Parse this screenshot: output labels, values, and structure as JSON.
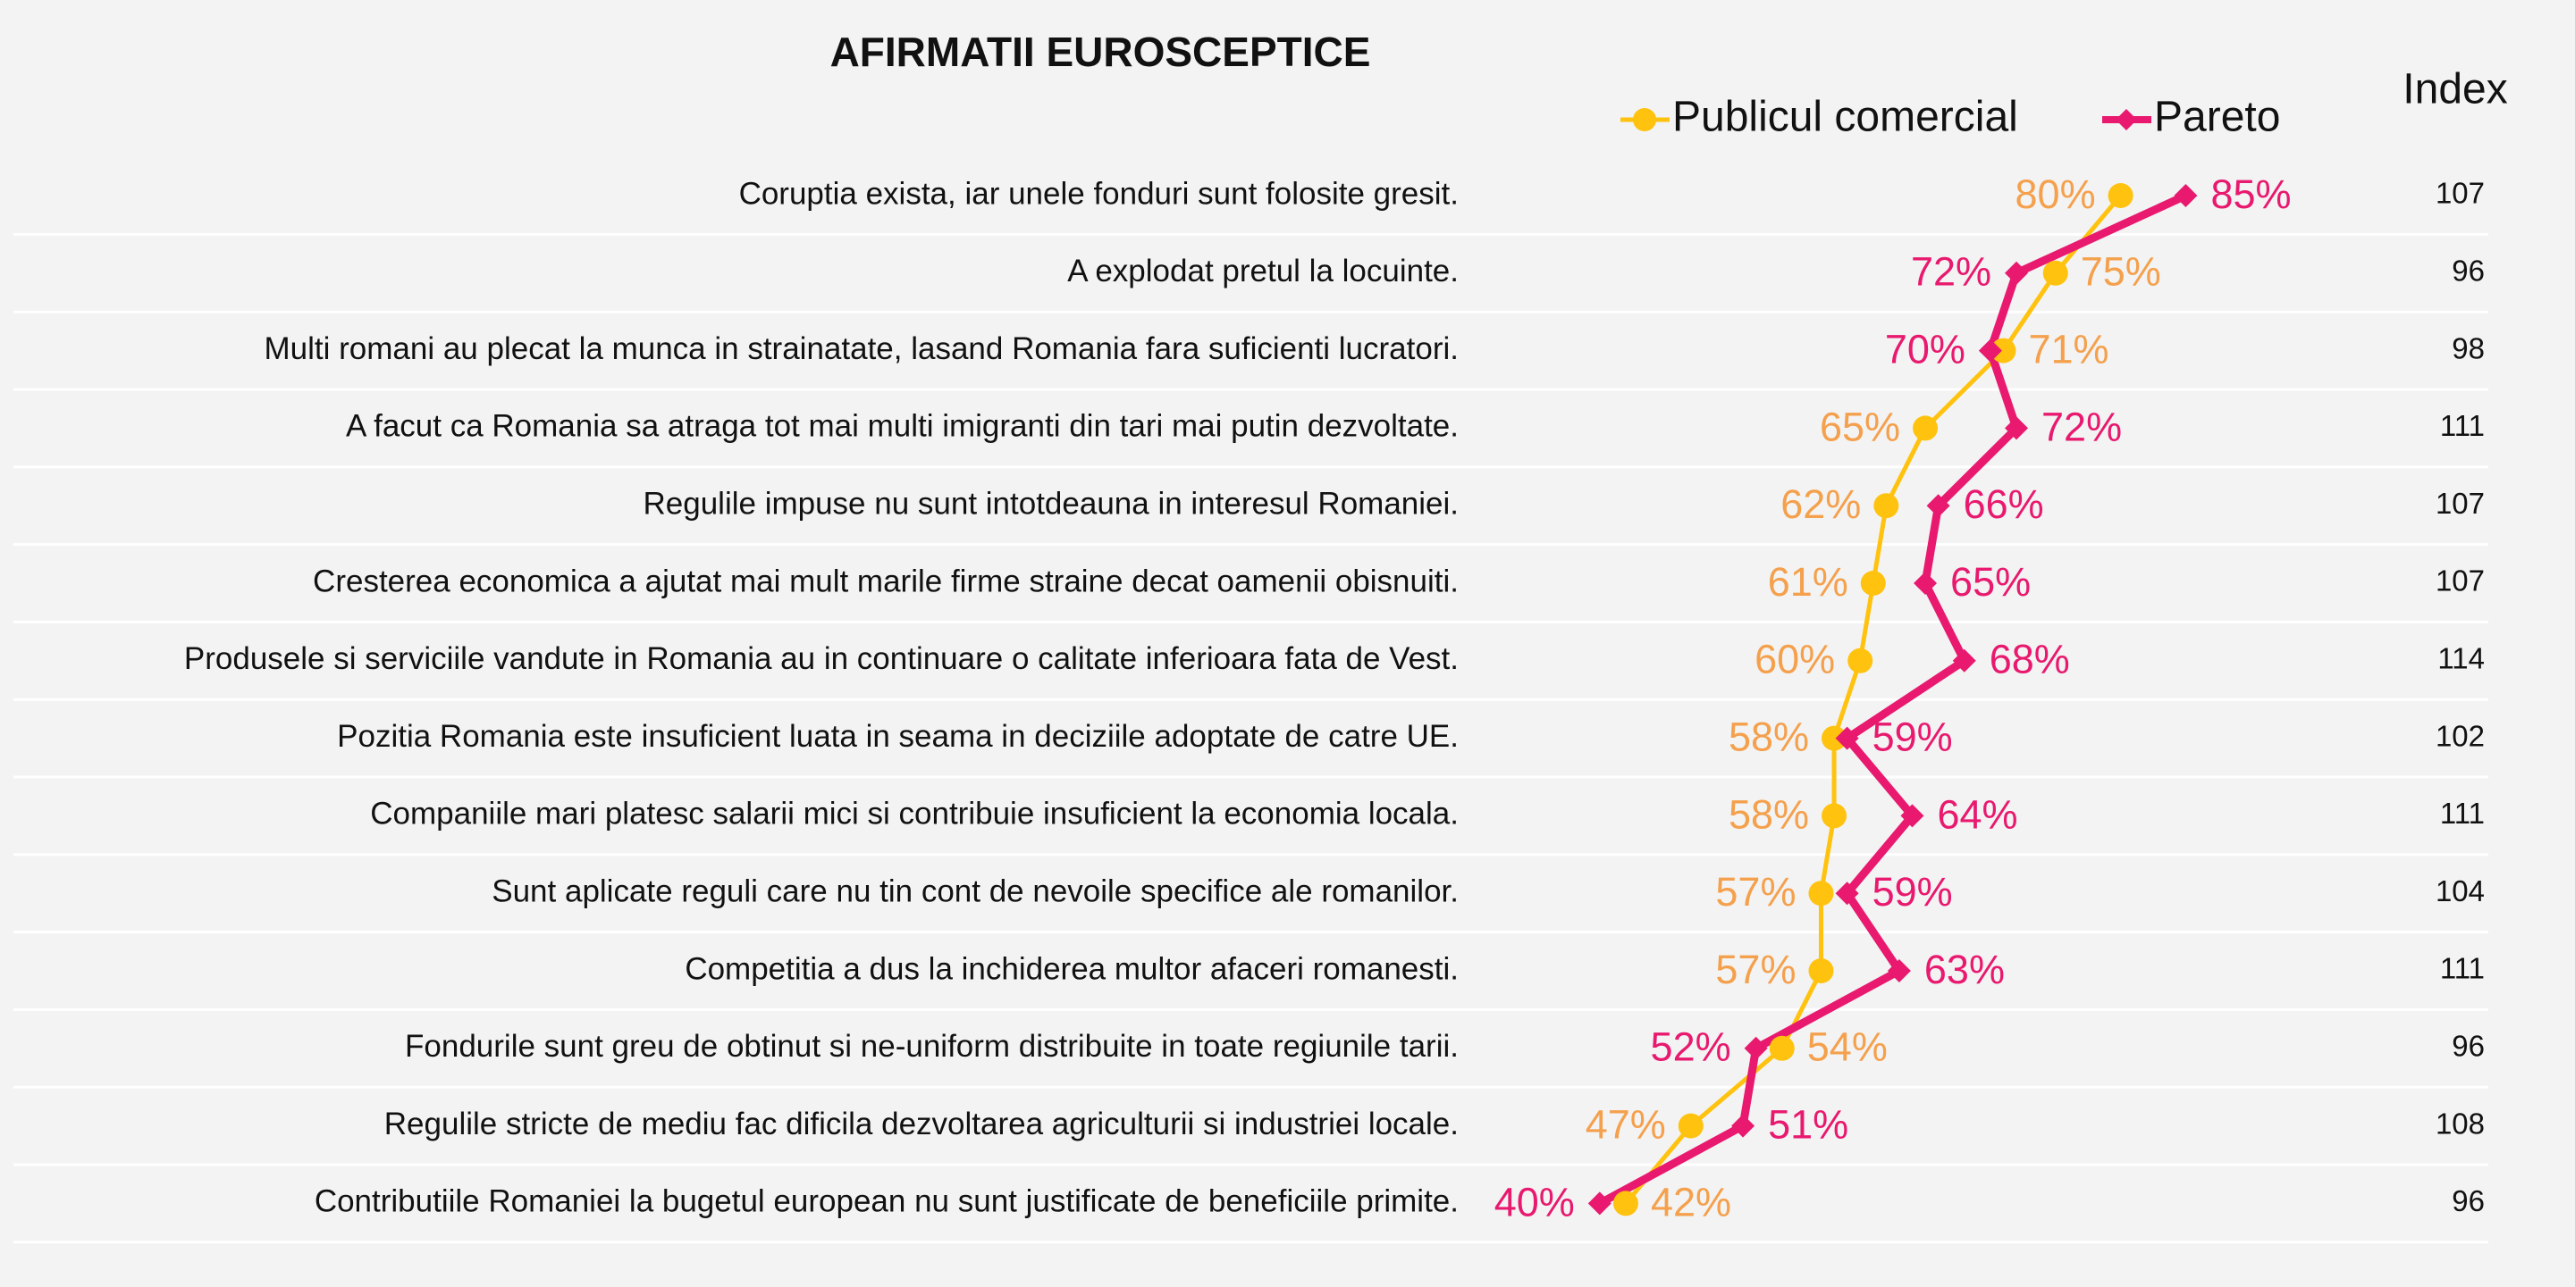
{
  "chart_data": {
    "type": "line",
    "title": "AFIRMATII EUROSCEPTICE",
    "categories": [
      "Coruptia exista, iar unele fonduri sunt folosite gresit.",
      "A explodat pretul la locuinte.",
      "Multi romani au plecat la munca in strainatate, lasand Romania fara suficienti lucratori.",
      "A facut ca Romania sa atraga tot mai multi imigranti din tari mai putin dezvoltate.",
      "Regulile impuse nu sunt intotdeauna in interesul Romaniei.",
      "Cresterea economica a ajutat mai mult marile firme straine decat oamenii obisnuiti.",
      "Produsele si serviciile vandute in Romania au in continuare o calitate inferioara fata de Vest.",
      "Pozitia Romania este insuficient luata in seama in deciziile adoptate de catre UE.",
      "Companiile mari platesc salarii mici si contribuie insuficient la economia locala.",
      "Sunt aplicate reguli care nu tin cont de nevoile specifice ale romanilor.",
      "Competitia a dus la inchiderea multor afaceri romanesti.",
      "Fondurile sunt greu de obtinut si ne-uniform distribuite in toate regiunile tarii.",
      "Regulile stricte de mediu fac dificila dezvoltarea agriculturii si industriei locale.",
      "Contributiile Romaniei la bugetul european nu sunt justificate de beneficiile primite."
    ],
    "series": [
      {
        "name": "Publicul comercial",
        "color": "#FFC20E",
        "label_color": "#F4A04C",
        "marker": "circle",
        "values": [
          80,
          75,
          71,
          65,
          62,
          61,
          60,
          58,
          58,
          57,
          57,
          54,
          47,
          42
        ],
        "value_labels": [
          "80%",
          "75%",
          "71%",
          "65%",
          "62%",
          "61%",
          "60%",
          "58%",
          "58%",
          "57%",
          "57%",
          "54%",
          "47%",
          "42%"
        ]
      },
      {
        "name": "Pareto",
        "color": "#E8196E",
        "label_color": "#E8196E",
        "marker": "diamond",
        "values": [
          85,
          72,
          70,
          72,
          66,
          65,
          68,
          59,
          64,
          59,
          63,
          52,
          51,
          40
        ],
        "value_labels": [
          "85%",
          "72%",
          "70%",
          "72%",
          "66%",
          "65%",
          "68%",
          "59%",
          "64%",
          "59%",
          "63%",
          "52%",
          "51%",
          "40%"
        ]
      }
    ],
    "index_label": "Index",
    "index": [
      107,
      96,
      98,
      111,
      107,
      107,
      114,
      102,
      111,
      104,
      111,
      96,
      108,
      96
    ]
  }
}
